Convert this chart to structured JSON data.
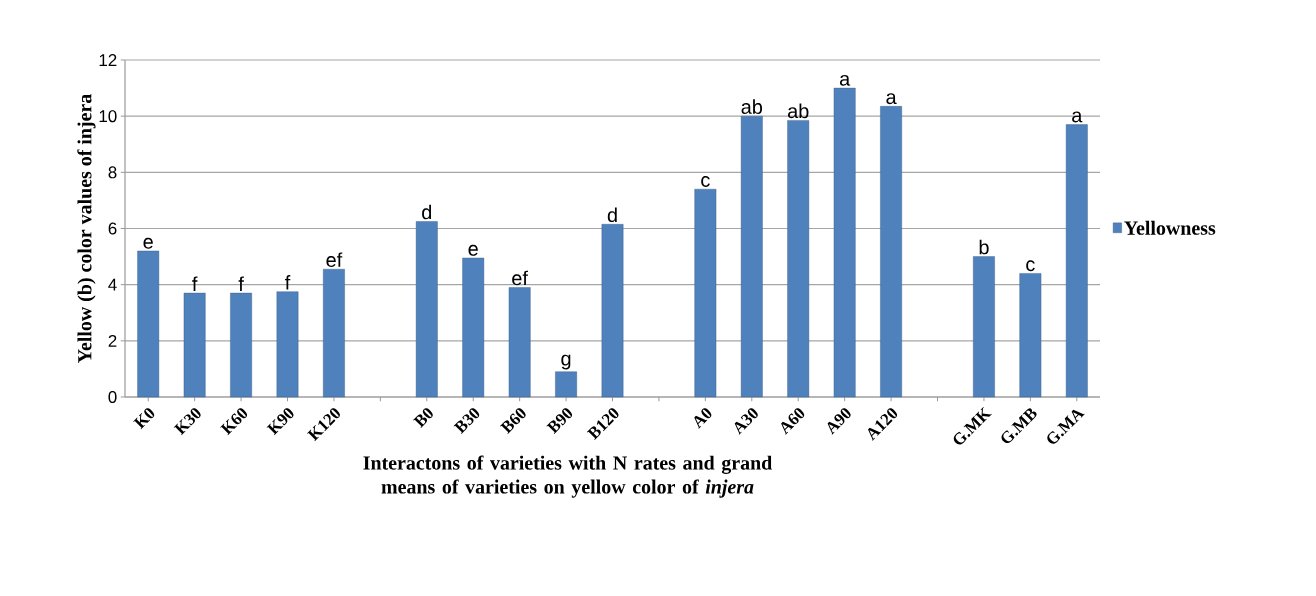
{
  "chart_data": {
    "type": "bar",
    "ylabel": "Yellow (b) color values of  injera",
    "xlabel": "Interactons of varieties with N rates and grand means of varieties on yellow color of *injera*",
    "categories": [
      "K0",
      "K30",
      "K60",
      "K90",
      "K120",
      null,
      "B0",
      "B30",
      "B60",
      "B90",
      "B120",
      null,
      "A0",
      "A30",
      "A60",
      "A90",
      "A120",
      null,
      "G.MK",
      "G.MB",
      "G.MA"
    ],
    "series": [
      {
        "name": "Yellowness",
        "color": "#4f81bd",
        "values": [
          5.2,
          3.7,
          3.7,
          3.75,
          4.55,
          null,
          6.25,
          4.95,
          3.9,
          0.9,
          6.15,
          null,
          7.4,
          10.0,
          9.85,
          11.0,
          10.35,
          null,
          5.0,
          4.4,
          9.7
        ]
      }
    ],
    "ylim": [
      0,
      12
    ],
    "yticks": [
      0,
      2,
      4,
      6,
      8,
      10,
      12
    ],
    "grid": "y",
    "legend": "right",
    "annotations": [
      {
        "text": "e",
        "x": "K0",
        "y": 5.2
      },
      {
        "text": "f",
        "x": "K30",
        "y": 3.7
      },
      {
        "text": "f",
        "x": "K60",
        "y": 3.7
      },
      {
        "text": "f",
        "x": "K90",
        "y": 3.75
      },
      {
        "text": "ef",
        "x": "K120",
        "y": 4.55
      },
      {
        "text": "d",
        "x": "B0",
        "y": 6.25
      },
      {
        "text": "e",
        "x": "B30",
        "y": 4.95
      },
      {
        "text": "ef",
        "x": "B60",
        "y": 3.9
      },
      {
        "text": "g",
        "x": "B90",
        "y": 0.9
      },
      {
        "text": "d",
        "x": "B120",
        "y": 6.15
      },
      {
        "text": "c",
        "x": "A0",
        "y": 7.4
      },
      {
        "text": "ab",
        "x": "A30",
        "y": 10.0
      },
      {
        "text": "ab",
        "x": "A60",
        "y": 9.85
      },
      {
        "text": "a",
        "x": "A90",
        "y": 11.0
      },
      {
        "text": "a",
        "x": "A120",
        "y": 10.35
      },
      {
        "text": "b",
        "x": "G.MK",
        "y": 5.0
      },
      {
        "text": "c",
        "x": "G.MB",
        "y": 4.4
      },
      {
        "text": "a",
        "x": "G.MA",
        "y": 9.7
      }
    ]
  }
}
